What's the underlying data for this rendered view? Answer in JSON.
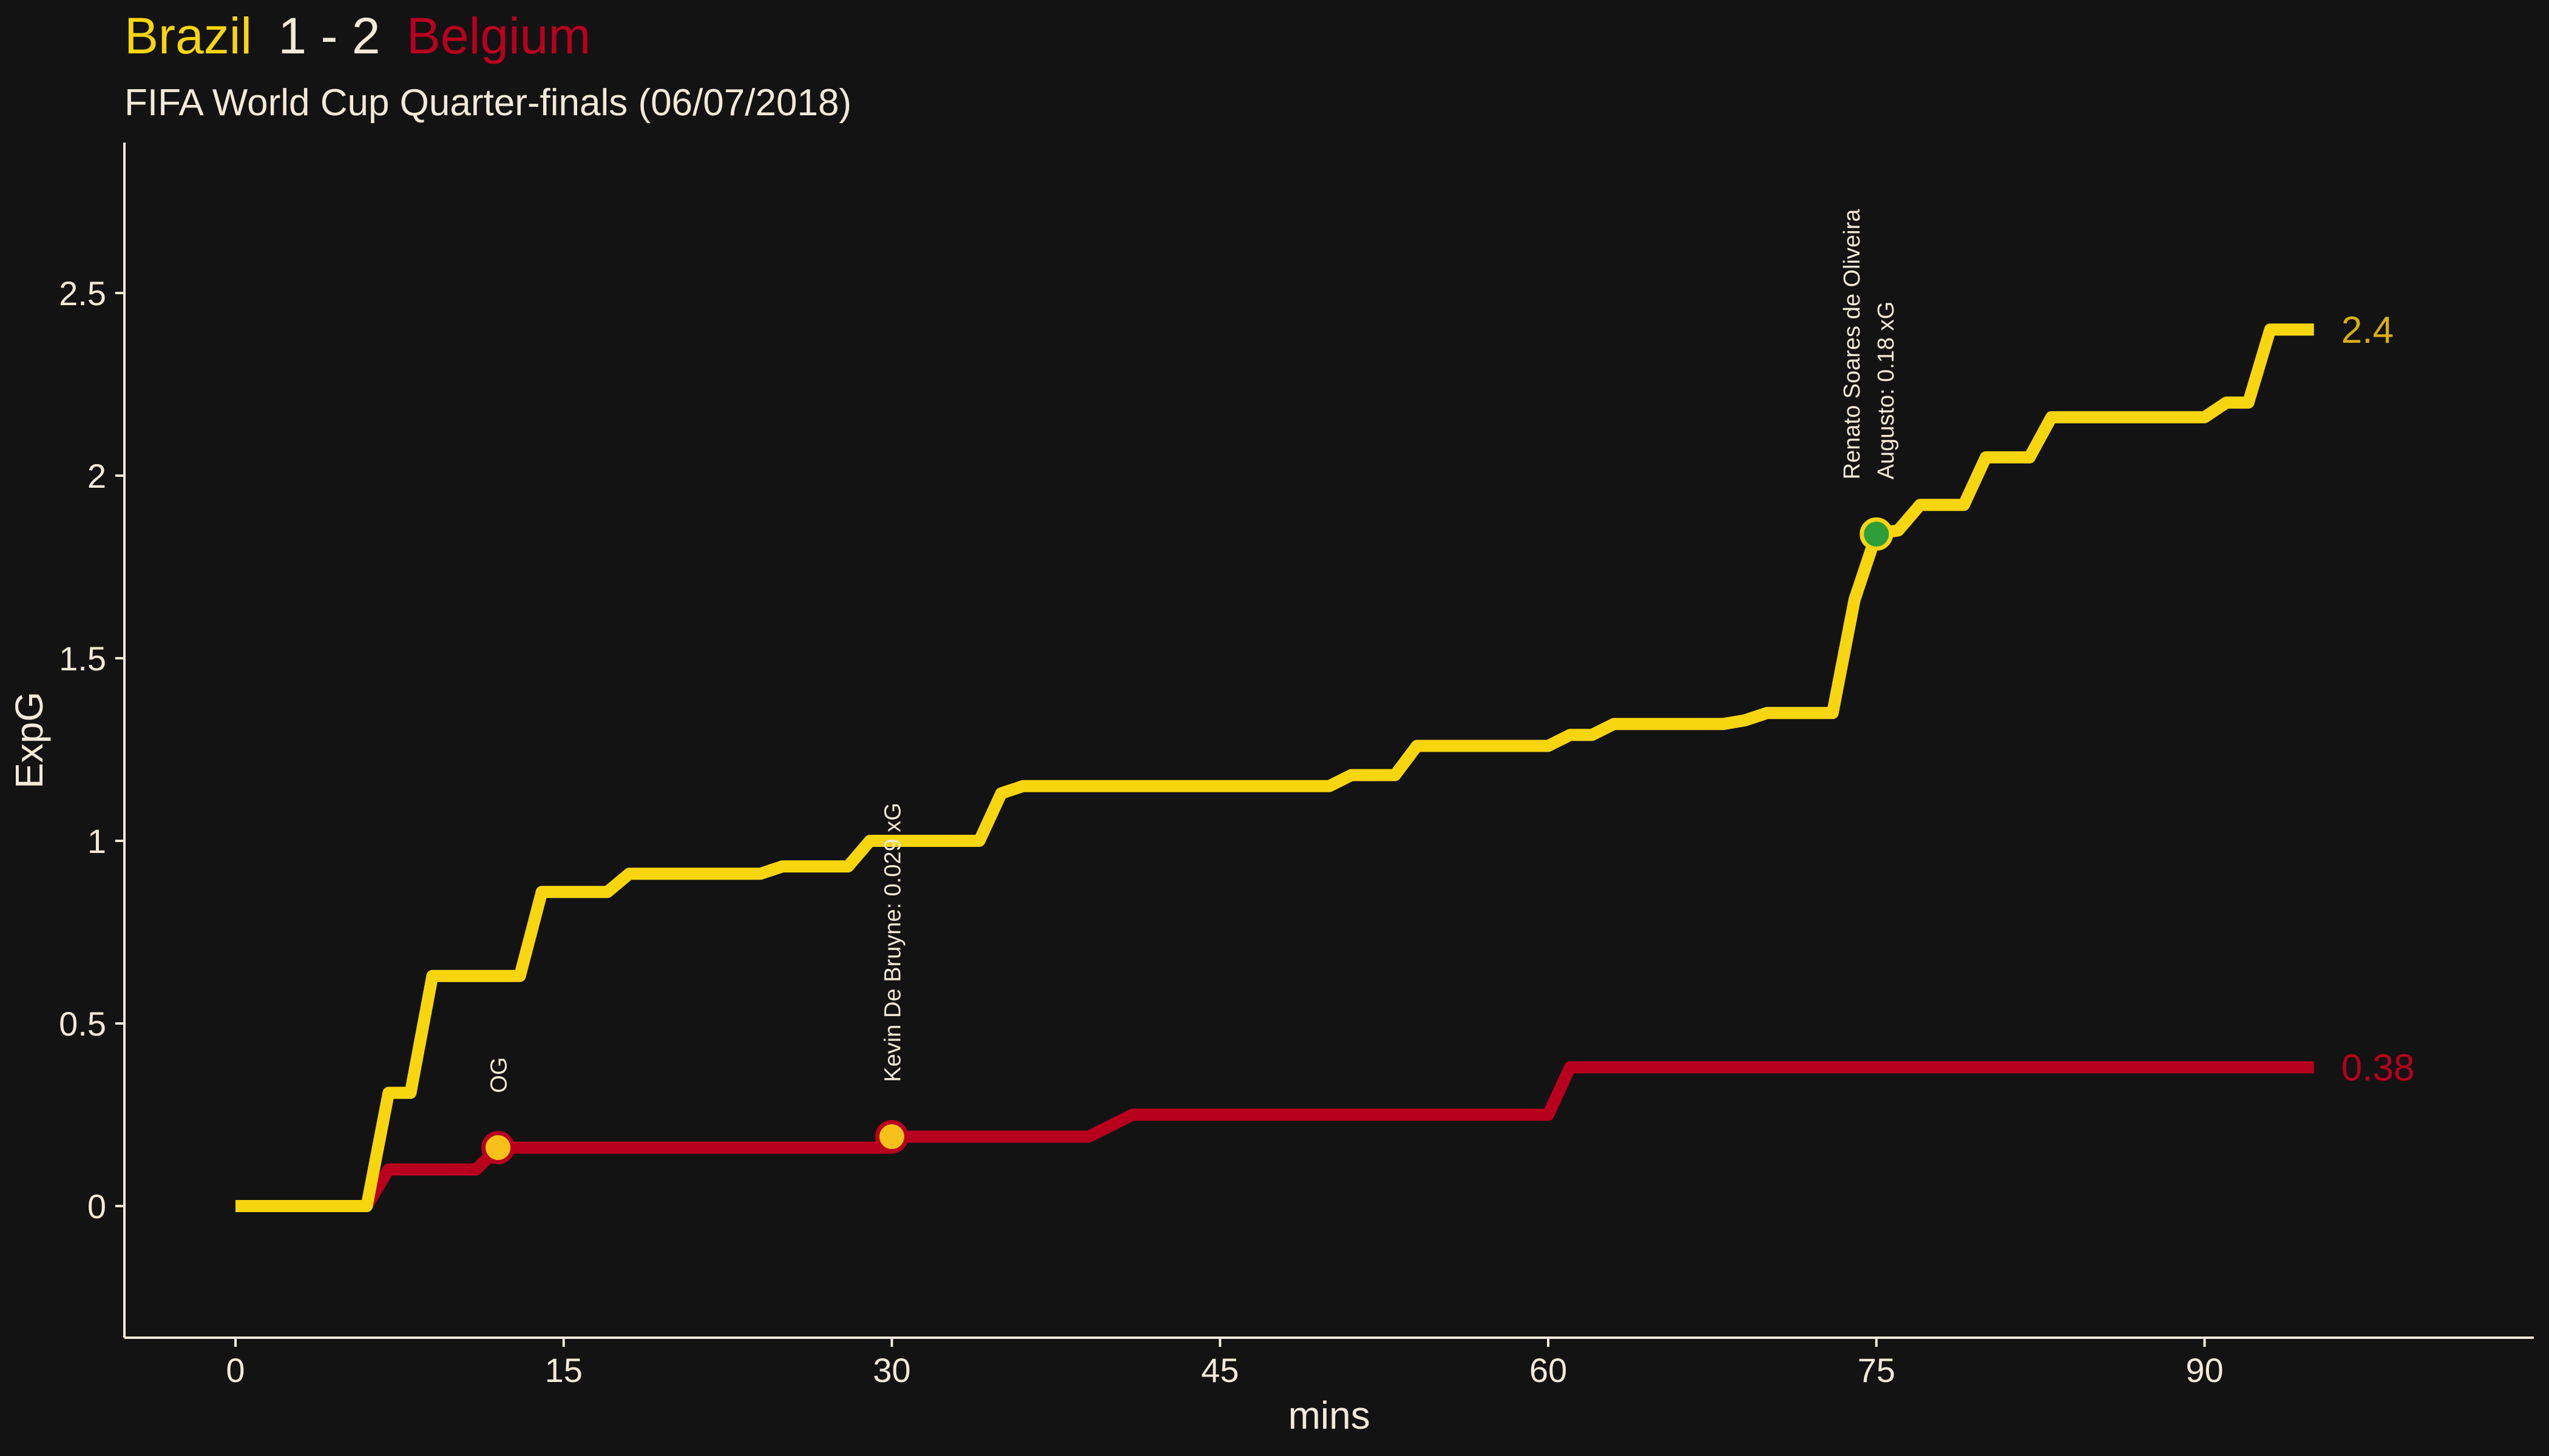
{
  "colors": {
    "background": "#131313",
    "home": "#F7D50F",
    "away": "#B8001E",
    "text": "#F2EAD8",
    "home_label": "#D9AE12",
    "goal_home_marker": "#2E9E3A",
    "goal_away_marker": "#F7C11A"
  },
  "header": {
    "home_team": "Brazil",
    "score": "1 - 2",
    "away_team": "Belgium",
    "subtitle": "FIFA World Cup Quarter-finals (06/07/2018)"
  },
  "chart_data": {
    "type": "line",
    "title": "Brazil 1 - 2 Belgium",
    "subtitle": "FIFA World Cup Quarter-finals (06/07/2018)",
    "xlabel": "mins",
    "ylabel": "ExpG",
    "xlim": [
      -10,
      105
    ],
    "ylim": [
      -0.35,
      2.9
    ],
    "x_ticks": [
      0,
      15,
      30,
      45,
      60,
      75,
      90
    ],
    "y_ticks": [
      0,
      0.5,
      1,
      1.5,
      2,
      2.5
    ],
    "y_tick_labels": [
      "0",
      "0.5",
      "1",
      "1.5",
      "2",
      "2.5"
    ],
    "grid": false,
    "series": [
      {
        "name": "Brazil",
        "color": "#F7D50F",
        "end_label": "2.4",
        "points": [
          [
            0,
            0
          ],
          [
            6,
            0
          ],
          [
            7,
            0.31
          ],
          [
            8,
            0.31
          ],
          [
            9,
            0.63
          ],
          [
            13,
            0.63
          ],
          [
            14,
            0.86
          ],
          [
            17,
            0.86
          ],
          [
            18,
            0.91
          ],
          [
            24,
            0.91
          ],
          [
            25,
            0.93
          ],
          [
            28,
            0.93
          ],
          [
            29,
            1.0
          ],
          [
            34,
            1.0
          ],
          [
            35,
            1.13
          ],
          [
            36,
            1.15
          ],
          [
            50,
            1.15
          ],
          [
            51,
            1.18
          ],
          [
            53,
            1.18
          ],
          [
            54,
            1.26
          ],
          [
            60,
            1.26
          ],
          [
            61,
            1.29
          ],
          [
            62,
            1.29
          ],
          [
            63,
            1.32
          ],
          [
            68,
            1.32
          ],
          [
            69,
            1.33
          ],
          [
            70,
            1.35
          ],
          [
            73,
            1.35
          ],
          [
            74,
            1.66
          ],
          [
            75,
            1.84
          ],
          [
            76,
            1.85
          ],
          [
            77,
            1.92
          ],
          [
            79,
            1.92
          ],
          [
            80,
            2.05
          ],
          [
            82,
            2.05
          ],
          [
            83,
            2.16
          ],
          [
            90,
            2.16
          ],
          [
            91,
            2.2
          ],
          [
            92,
            2.2
          ],
          [
            93,
            2.4
          ],
          [
            95,
            2.4
          ]
        ]
      },
      {
        "name": "Belgium",
        "color": "#B8001E",
        "end_label": "0.38",
        "points": [
          [
            0,
            0
          ],
          [
            6,
            0
          ],
          [
            7,
            0.1
          ],
          [
            11,
            0.1
          ],
          [
            12,
            0.16
          ],
          [
            30,
            0.16
          ],
          [
            30,
            0.19
          ],
          [
            39,
            0.19
          ],
          [
            40,
            0.22
          ],
          [
            41,
            0.25
          ],
          [
            60,
            0.25
          ],
          [
            61,
            0.38
          ],
          [
            95,
            0.38
          ]
        ]
      }
    ],
    "goals": [
      {
        "team": "Belgium",
        "minute": 12,
        "xg": 0.16,
        "label": "OG",
        "marker_color": "#F7C11A"
      },
      {
        "team": "Belgium",
        "minute": 30,
        "xg": 0.19,
        "label": "Kevin De Bruyne: 0.029 xG",
        "marker_color": "#F7C11A"
      },
      {
        "team": "Brazil",
        "minute": 75,
        "xg": 1.84,
        "label_line1": "Renato Soares de Oliveira",
        "label_line2": "Augusto: 0.18 xG",
        "marker_color": "#2E9E3A"
      }
    ]
  }
}
